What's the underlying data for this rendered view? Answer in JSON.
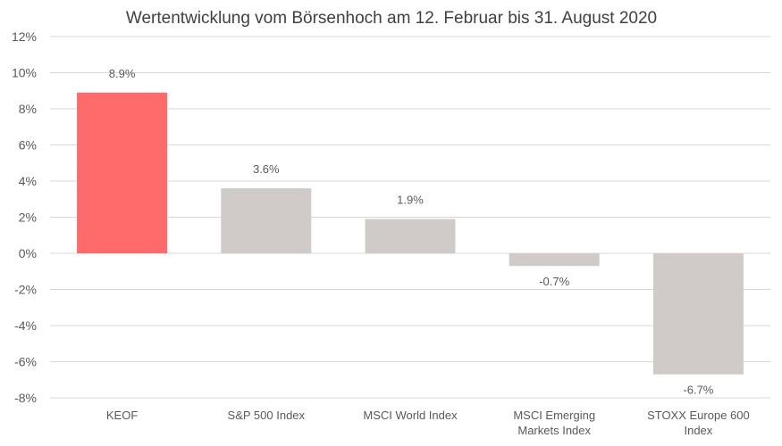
{
  "chart_data": {
    "type": "bar",
    "title": "Wertentwicklung vom Börsenhoch am 12. Februar bis 31. August 2020",
    "categories": [
      "KEOF",
      "S&P 500 Index",
      "MSCI World Index",
      "MSCI Emerging Markets Index",
      "STOXX Europe 600 Index"
    ],
    "category_lines": [
      [
        "KEOF"
      ],
      [
        "S&P 500 Index"
      ],
      [
        "MSCI World Index"
      ],
      [
        "MSCI Emerging",
        "Markets Index"
      ],
      [
        "STOXX Europe 600",
        "Index"
      ]
    ],
    "values": [
      8.9,
      3.6,
      1.9,
      -0.7,
      -6.7
    ],
    "data_labels": [
      "8.9%",
      "3.6%",
      "1.9%",
      "-0.7%",
      "-6.7%"
    ],
    "colors": [
      "#ff6b6b",
      "#d0cbc8",
      "#d0cbc8",
      "#d0cbc8",
      "#d0cbc8"
    ],
    "ylim": [
      -8,
      12
    ],
    "yticks": [
      12,
      10,
      8,
      6,
      4,
      2,
      0,
      -2,
      -4,
      -6,
      -8
    ],
    "ytick_labels": [
      "12%",
      "10%",
      "8%",
      "6%",
      "4%",
      "2%",
      "0%",
      "-2%",
      "-4%",
      "-6%",
      "-8%"
    ],
    "xlabel": "",
    "ylabel": "",
    "grid": true,
    "legend": "none"
  }
}
